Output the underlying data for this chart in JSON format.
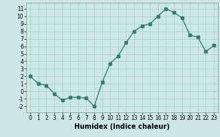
{
  "x": [
    0,
    1,
    2,
    3,
    4,
    5,
    6,
    7,
    8,
    9,
    10,
    11,
    12,
    13,
    14,
    15,
    16,
    17,
    18,
    19,
    20,
    21,
    22,
    23
  ],
  "y": [
    2.0,
    1.0,
    0.8,
    -0.3,
    -1.2,
    -0.8,
    -0.8,
    -0.9,
    -2.0,
    1.2,
    3.7,
    4.7,
    6.5,
    8.0,
    8.7,
    9.0,
    10.0,
    11.0,
    10.5,
    9.8,
    7.5,
    7.2,
    5.3,
    6.1
  ],
  "line_color": "#2e7d6e",
  "bg_color": "#cce8e4",
  "grid_color": "#b0d0cc",
  "xlabel": "Humidex (Indice chaleur)",
  "ylim": [
    -2.8,
    11.8
  ],
  "yticks": [
    -2,
    -1,
    0,
    1,
    2,
    3,
    4,
    5,
    6,
    7,
    8,
    9,
    10,
    11
  ],
  "xticks": [
    0,
    1,
    2,
    3,
    4,
    5,
    6,
    7,
    8,
    9,
    10,
    11,
    12,
    13,
    14,
    15,
    16,
    17,
    18,
    19,
    20,
    21,
    22,
    23
  ],
  "tick_fontsize": 5.5,
  "xlabel_fontsize": 7.0,
  "marker_size": 2.5,
  "linewidth": 1.0
}
